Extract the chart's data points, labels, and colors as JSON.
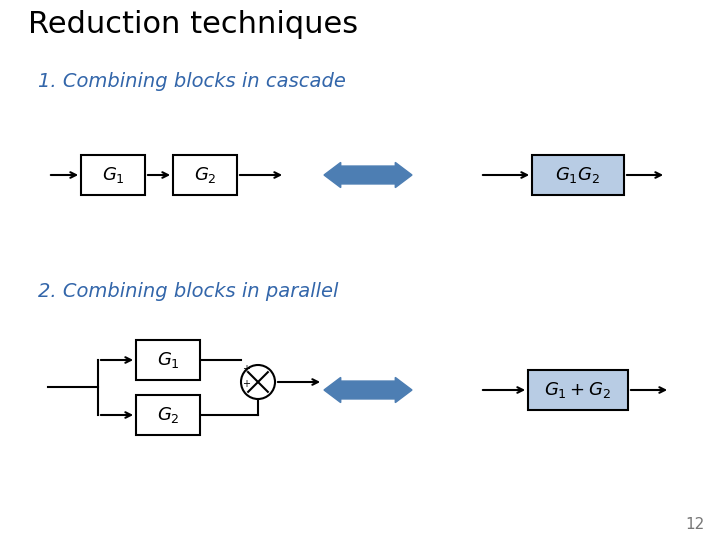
{
  "title": "Reduction techniques",
  "title_color": "#000000",
  "title_fontsize": 22,
  "bg_color": "#ffffff",
  "section1_label": "1. Combining blocks in cascade",
  "section2_label": "2. Combining blocks in parallel",
  "section_color": "#3366aa",
  "section_fontsize": 14,
  "box_color_white": "#ffffff",
  "box_color_blue": "#b8cce4",
  "box_edge_color": "#000000",
  "arrow_color": "#4d7eb3",
  "line_color": "#000000",
  "page_number": "12"
}
